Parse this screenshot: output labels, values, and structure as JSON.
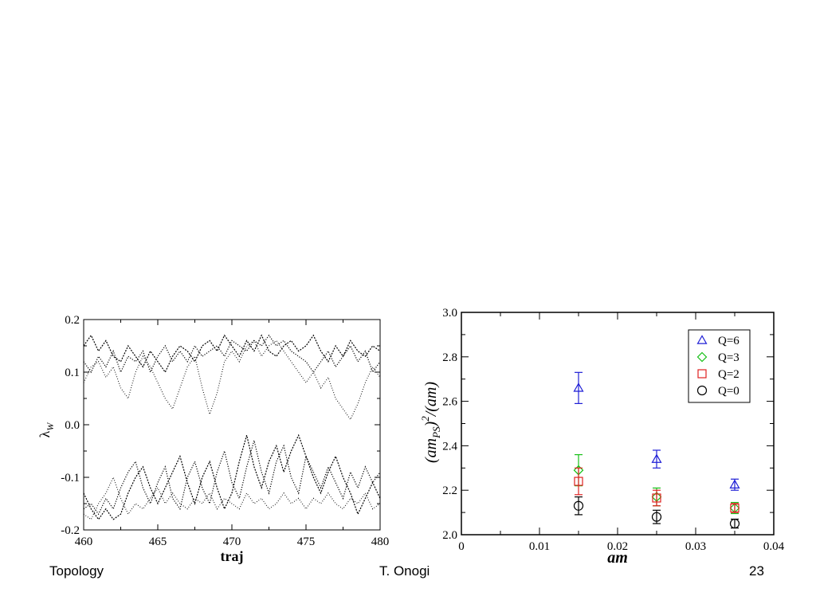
{
  "footer": {
    "left": "Topology",
    "center": "T. Onogi",
    "right": "23"
  },
  "chart_data": [
    {
      "type": "line",
      "xlabel": "traj",
      "ylabel": "λ_W",
      "xlim": [
        460,
        480
      ],
      "ylim": [
        -0.2,
        0.2
      ],
      "xticks": [
        "460",
        "465",
        "470",
        "475",
        "480"
      ],
      "yticks": [
        "0.2",
        "0.1",
        "0.0",
        "-0.1",
        "-0.2"
      ],
      "series": [
        {
          "values": [
            [
              460.0,
              0.12
            ],
            [
              460.5,
              0.1
            ],
            [
              461.0,
              0.13
            ],
            [
              461.5,
              0.11
            ],
            [
              462.0,
              0.14
            ],
            [
              462.5,
              0.1
            ],
            [
              463.0,
              0.13
            ],
            [
              463.5,
              0.12
            ],
            [
              464.0,
              0.14
            ],
            [
              464.5,
              0.1
            ],
            [
              465.0,
              0.13
            ],
            [
              465.5,
              0.15
            ],
            [
              466.0,
              0.12
            ],
            [
              466.5,
              0.14
            ],
            [
              467.0,
              0.12
            ],
            [
              467.5,
              0.15
            ],
            [
              468.0,
              0.13
            ],
            [
              468.5,
              0.14
            ],
            [
              469.0,
              0.15
            ],
            [
              469.5,
              0.13
            ],
            [
              470.0,
              0.16
            ],
            [
              470.5,
              0.15
            ],
            [
              471.0,
              0.14
            ],
            [
              471.5,
              0.16
            ],
            [
              472.0,
              0.15
            ],
            [
              472.5,
              0.17
            ],
            [
              473.0,
              0.15
            ],
            [
              473.5,
              0.16
            ],
            [
              474.0,
              0.14
            ],
            [
              474.5,
              0.13
            ],
            [
              475.0,
              0.12
            ],
            [
              475.5,
              0.1
            ],
            [
              476.0,
              0.12
            ],
            [
              476.5,
              0.14
            ],
            [
              477.0,
              0.11
            ],
            [
              477.5,
              0.13
            ],
            [
              478.0,
              0.15
            ],
            [
              478.5,
              0.12
            ],
            [
              479.0,
              0.14
            ],
            [
              479.5,
              0.1
            ],
            [
              480.0,
              0.12
            ]
          ]
        },
        {
          "values": [
            [
              460.0,
              0.08
            ],
            [
              460.5,
              0.11
            ],
            [
              461.0,
              0.12
            ],
            [
              461.5,
              0.09
            ],
            [
              462.0,
              0.11
            ],
            [
              462.5,
              0.07
            ],
            [
              463.0,
              0.05
            ],
            [
              463.5,
              0.1
            ],
            [
              464.0,
              0.13
            ],
            [
              464.5,
              0.11
            ],
            [
              465.0,
              0.08
            ],
            [
              465.5,
              0.05
            ],
            [
              466.0,
              0.03
            ],
            [
              466.5,
              0.07
            ],
            [
              467.0,
              0.11
            ],
            [
              467.5,
              0.13
            ],
            [
              468.0,
              0.07
            ],
            [
              468.5,
              0.02
            ],
            [
              469.0,
              0.06
            ],
            [
              469.5,
              0.12
            ],
            [
              470.0,
              0.14
            ],
            [
              470.5,
              0.12
            ],
            [
              471.0,
              0.15
            ],
            [
              471.5,
              0.16
            ],
            [
              472.0,
              0.13
            ],
            [
              472.5,
              0.15
            ],
            [
              473.0,
              0.16
            ],
            [
              473.5,
              0.14
            ],
            [
              474.0,
              0.12
            ],
            [
              474.5,
              0.1
            ],
            [
              475.0,
              0.08
            ],
            [
              475.5,
              0.1
            ],
            [
              476.0,
              0.07
            ],
            [
              476.5,
              0.09
            ],
            [
              477.0,
              0.05
            ],
            [
              477.5,
              0.03
            ],
            [
              478.0,
              0.01
            ],
            [
              478.5,
              0.04
            ],
            [
              479.0,
              0.08
            ],
            [
              479.5,
              0.11
            ],
            [
              480.0,
              0.09
            ]
          ]
        },
        {
          "values": [
            [
              460.0,
              0.15
            ],
            [
              460.5,
              0.17
            ],
            [
              461.0,
              0.14
            ],
            [
              461.5,
              0.16
            ],
            [
              462.0,
              0.13
            ],
            [
              462.5,
              0.12
            ],
            [
              463.0,
              0.15
            ],
            [
              463.5,
              0.13
            ],
            [
              464.0,
              0.11
            ],
            [
              464.5,
              0.14
            ],
            [
              465.0,
              0.12
            ],
            [
              465.5,
              0.1
            ],
            [
              466.0,
              0.13
            ],
            [
              466.5,
              0.15
            ],
            [
              467.0,
              0.14
            ],
            [
              467.5,
              0.12
            ],
            [
              468.0,
              0.15
            ],
            [
              468.5,
              0.16
            ],
            [
              469.0,
              0.14
            ],
            [
              469.5,
              0.17
            ],
            [
              470.0,
              0.15
            ],
            [
              470.5,
              0.13
            ],
            [
              471.0,
              0.16
            ],
            [
              471.5,
              0.14
            ],
            [
              472.0,
              0.17
            ],
            [
              472.5,
              0.14
            ],
            [
              473.0,
              0.13
            ],
            [
              473.5,
              0.15
            ],
            [
              474.0,
              0.16
            ],
            [
              474.5,
              0.14
            ],
            [
              475.0,
              0.15
            ],
            [
              475.5,
              0.17
            ],
            [
              476.0,
              0.14
            ],
            [
              476.5,
              0.12
            ],
            [
              477.0,
              0.15
            ],
            [
              477.5,
              0.13
            ],
            [
              478.0,
              0.16
            ],
            [
              478.5,
              0.14
            ],
            [
              479.0,
              0.13
            ],
            [
              479.5,
              0.15
            ],
            [
              480.0,
              0.14
            ]
          ]
        },
        {
          "values": [
            [
              460.0,
              -0.16
            ],
            [
              460.5,
              -0.15
            ],
            [
              461.0,
              -0.17
            ],
            [
              461.5,
              -0.14
            ],
            [
              462.0,
              -0.16
            ],
            [
              462.5,
              -0.12
            ],
            [
              463.0,
              -0.09
            ],
            [
              463.5,
              -0.07
            ],
            [
              464.0,
              -0.12
            ],
            [
              464.5,
              -0.15
            ],
            [
              465.0,
              -0.11
            ],
            [
              465.5,
              -0.08
            ],
            [
              466.0,
              -0.14
            ],
            [
              466.5,
              -0.16
            ],
            [
              467.0,
              -0.1
            ],
            [
              467.5,
              -0.07
            ],
            [
              468.0,
              -0.12
            ],
            [
              468.5,
              -0.15
            ],
            [
              469.0,
              -0.09
            ],
            [
              469.5,
              -0.05
            ],
            [
              470.0,
              -0.11
            ],
            [
              470.5,
              -0.14
            ],
            [
              471.0,
              -0.08
            ],
            [
              471.5,
              -0.03
            ],
            [
              472.0,
              -0.09
            ],
            [
              472.5,
              -0.13
            ],
            [
              473.0,
              -0.07
            ],
            [
              473.5,
              -0.04
            ],
            [
              474.0,
              -0.1
            ],
            [
              474.5,
              -0.13
            ],
            [
              475.0,
              -0.06
            ],
            [
              475.5,
              -0.09
            ],
            [
              476.0,
              -0.12
            ],
            [
              476.5,
              -0.08
            ],
            [
              477.0,
              -0.11
            ],
            [
              477.5,
              -0.14
            ],
            [
              478.0,
              -0.09
            ],
            [
              478.5,
              -0.12
            ],
            [
              479.0,
              -0.08
            ],
            [
              479.5,
              -0.11
            ],
            [
              480.0,
              -0.09
            ]
          ]
        },
        {
          "values": [
            [
              460.0,
              -0.17
            ],
            [
              460.5,
              -0.18
            ],
            [
              461.0,
              -0.15
            ],
            [
              461.5,
              -0.13
            ],
            [
              462.0,
              -0.1
            ],
            [
              462.5,
              -0.14
            ],
            [
              463.0,
              -0.17
            ],
            [
              463.5,
              -0.15
            ],
            [
              464.0,
              -0.16
            ],
            [
              464.5,
              -0.14
            ],
            [
              465.0,
              -0.12
            ],
            [
              465.5,
              -0.15
            ],
            [
              466.0,
              -0.13
            ],
            [
              466.5,
              -0.15
            ],
            [
              467.0,
              -0.16
            ],
            [
              467.5,
              -0.14
            ],
            [
              468.0,
              -0.15
            ],
            [
              468.5,
              -0.13
            ],
            [
              469.0,
              -0.16
            ],
            [
              469.5,
              -0.14
            ],
            [
              470.0,
              -0.15
            ],
            [
              470.5,
              -0.16
            ],
            [
              471.0,
              -0.13
            ],
            [
              471.5,
              -0.15
            ],
            [
              472.0,
              -0.14
            ],
            [
              472.5,
              -0.16
            ],
            [
              473.0,
              -0.15
            ],
            [
              473.5,
              -0.13
            ],
            [
              474.0,
              -0.15
            ],
            [
              474.5,
              -0.14
            ],
            [
              475.0,
              -0.16
            ],
            [
              475.5,
              -0.14
            ],
            [
              476.0,
              -0.15
            ],
            [
              476.5,
              -0.13
            ],
            [
              477.0,
              -0.15
            ],
            [
              477.5,
              -0.16
            ],
            [
              478.0,
              -0.14
            ],
            [
              478.5,
              -0.15
            ],
            [
              479.0,
              -0.13
            ],
            [
              479.5,
              -0.16
            ],
            [
              480.0,
              -0.15
            ]
          ]
        },
        {
          "values": [
            [
              460.0,
              -0.13
            ],
            [
              460.5,
              -0.16
            ],
            [
              461.0,
              -0.18
            ],
            [
              461.5,
              -0.16
            ],
            [
              462.0,
              -0.18
            ],
            [
              462.5,
              -0.17
            ],
            [
              463.0,
              -0.13
            ],
            [
              463.5,
              -0.1
            ],
            [
              464.0,
              -0.08
            ],
            [
              464.5,
              -0.12
            ],
            [
              465.0,
              -0.15
            ],
            [
              465.5,
              -0.12
            ],
            [
              466.0,
              -0.09
            ],
            [
              466.5,
              -0.06
            ],
            [
              467.0,
              -0.11
            ],
            [
              467.5,
              -0.15
            ],
            [
              468.0,
              -0.1
            ],
            [
              468.5,
              -0.07
            ],
            [
              469.0,
              -0.12
            ],
            [
              469.5,
              -0.16
            ],
            [
              470.0,
              -0.13
            ],
            [
              470.5,
              -0.07
            ],
            [
              471.0,
              -0.02
            ],
            [
              471.5,
              -0.08
            ],
            [
              472.0,
              -0.12
            ],
            [
              472.5,
              -0.07
            ],
            [
              473.0,
              -0.04
            ],
            [
              473.5,
              -0.09
            ],
            [
              474.0,
              -0.05
            ],
            [
              474.5,
              -0.02
            ],
            [
              475.0,
              -0.06
            ],
            [
              475.5,
              -0.1
            ],
            [
              476.0,
              -0.13
            ],
            [
              476.5,
              -0.09
            ],
            [
              477.0,
              -0.06
            ],
            [
              477.5,
              -0.1
            ],
            [
              478.0,
              -0.13
            ],
            [
              478.5,
              -0.17
            ],
            [
              479.0,
              -0.14
            ],
            [
              479.5,
              -0.11
            ],
            [
              480.0,
              -0.14
            ]
          ]
        }
      ]
    },
    {
      "type": "scatter",
      "xlabel": "am",
      "ylabel": "(am_PS)^2/(am)",
      "xlim": [
        0,
        0.04
      ],
      "ylim": [
        2.0,
        3.0
      ],
      "xticks": [
        "0",
        "0.01",
        "0.02",
        "0.03",
        "0.04"
      ],
      "yticks": [
        "3.0",
        "2.8",
        "2.6",
        "2.4",
        "2.2",
        "2.0"
      ],
      "legend_position": "top-right",
      "series": [
        {
          "name": "Q=6",
          "color": "#1f1fd6",
          "marker": "triangle",
          "x": [
            0.015,
            0.025,
            0.035
          ],
          "y": [
            2.66,
            2.34,
            2.225
          ],
          "err": [
            0.07,
            0.04,
            0.025
          ]
        },
        {
          "name": "Q=3",
          "color": "#16c016",
          "marker": "diamond",
          "x": [
            0.015,
            0.025,
            0.035
          ],
          "y": [
            2.29,
            2.17,
            2.12
          ],
          "err": [
            0.07,
            0.04,
            0.025
          ]
        },
        {
          "name": "Q=2",
          "color": "#e02020",
          "marker": "square",
          "x": [
            0.015,
            0.025,
            0.035
          ],
          "y": [
            2.24,
            2.165,
            2.12
          ],
          "err": [
            0.06,
            0.035,
            0.02
          ]
        },
        {
          "name": "Q=0",
          "color": "#000000",
          "marker": "circle",
          "x": [
            0.015,
            0.025,
            0.035
          ],
          "y": [
            2.13,
            2.08,
            2.05
          ],
          "err": [
            0.04,
            0.03,
            0.02
          ]
        }
      ]
    }
  ]
}
